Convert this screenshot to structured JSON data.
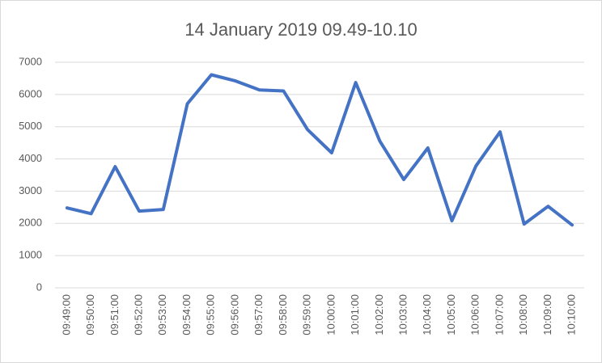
{
  "chart_data": {
    "type": "line",
    "title": "14 January 2019 09.49-10.10",
    "categories": [
      "09:49:00",
      "09:50:00",
      "09:51:00",
      "09:52:00",
      "09:53:00",
      "09:54:00",
      "09:55:00",
      "09:56:00",
      "09:57:00",
      "09:58:00",
      "09:59:00",
      "10:00:00",
      "10:01:00",
      "10:02:00",
      "10:03:00",
      "10:04:00",
      "10:05:00",
      "10:06:00",
      "10:07:00",
      "10:08:00",
      "10:09:00",
      "10:10:00"
    ],
    "values": [
      2480,
      2300,
      3760,
      2380,
      2430,
      5710,
      6610,
      6420,
      6140,
      6110,
      4910,
      4190,
      6370,
      4560,
      3360,
      4340,
      2080,
      3780,
      4840,
      1980,
      2530,
      1950
    ],
    "color": "#4472c4",
    "ylim": [
      0,
      7000
    ],
    "yticks": [
      0,
      1000,
      2000,
      3000,
      4000,
      5000,
      6000,
      7000
    ],
    "grid": true
  }
}
